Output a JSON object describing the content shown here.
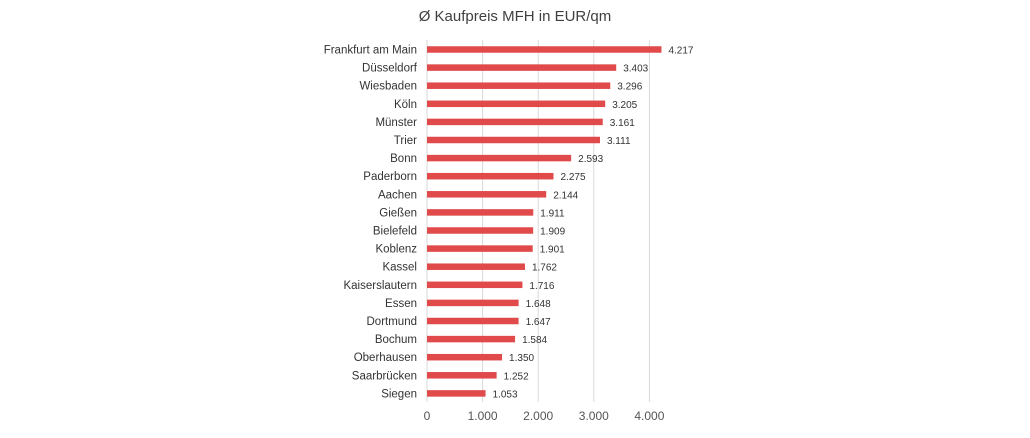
{
  "chart_data": {
    "type": "bar",
    "orientation": "horizontal",
    "title": "Ø Kaufpreis MFH in EUR/qm",
    "categories": [
      "Frankfurt am Main",
      "Düsseldorf",
      "Wiesbaden",
      "Köln",
      "Münster",
      "Trier",
      "Bonn",
      "Paderborn",
      "Aachen",
      "Gießen",
      "Bielefeld",
      "Koblenz",
      "Kassel",
      "Kaiserslautern",
      "Essen",
      "Dortmund",
      "Bochum",
      "Oberhausen",
      "Saarbrücken",
      "Siegen"
    ],
    "values": [
      4217,
      3403,
      3296,
      3205,
      3161,
      3111,
      2593,
      2275,
      2144,
      1911,
      1909,
      1901,
      1762,
      1716,
      1648,
      1647,
      1584,
      1350,
      1252,
      1053
    ],
    "value_labels": [
      "4.217",
      "3.403",
      "3.296",
      "3.205",
      "3.161",
      "3.111",
      "2.593",
      "2.275",
      "2.144",
      "1.911",
      "1.909",
      "1.901",
      "1.762",
      "1.716",
      "1.648",
      "1.647",
      "1.584",
      "1.350",
      "1.252",
      "1.053"
    ],
    "xticks": [
      0,
      1000,
      2000,
      3000,
      4000
    ],
    "xtick_labels": [
      "0",
      "1.000",
      "2.000",
      "3.000",
      "4.000"
    ],
    "xlim": [
      0,
      4500
    ],
    "grid": true,
    "legend": "none",
    "bar_color": "#e04a4a"
  }
}
